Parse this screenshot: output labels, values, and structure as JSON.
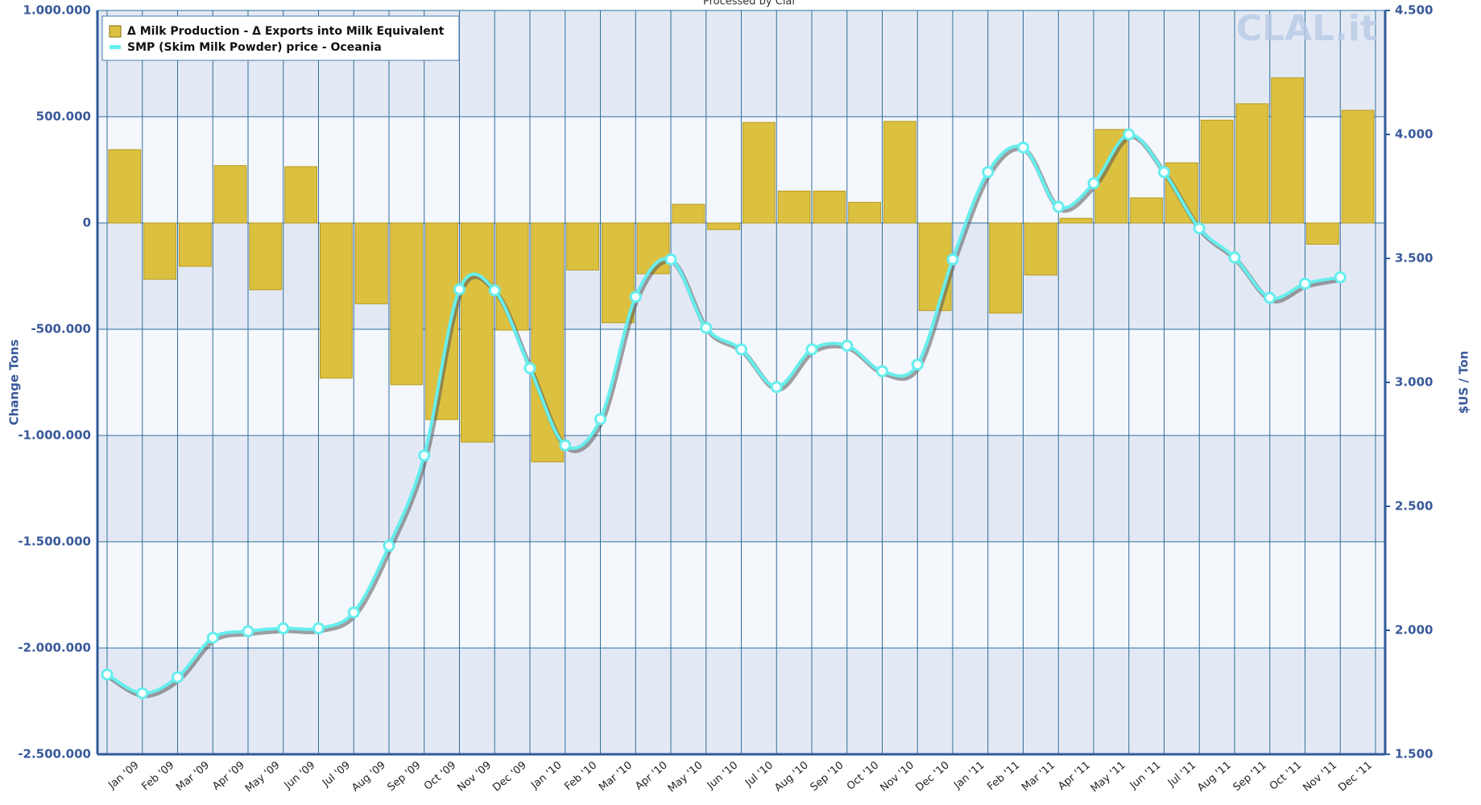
{
  "chart_data": {
    "type": "bar_line",
    "title": "Processed by Clal",
    "watermark": "CLAL.it",
    "y_label": "Change Tons",
    "y2_label": "$US / Ton",
    "categories": [
      "Jan '09",
      "Feb '09",
      "Mar '09",
      "Apr '09",
      "May '09",
      "Jun '09",
      "Jul '09",
      "Aug '09",
      "Sep '09",
      "Oct '09",
      "Nov '09",
      "Dec '09",
      "Jan '10",
      "Feb '10",
      "Mar '10",
      "Apr '10",
      "May '10",
      "Jun '10",
      "Jul '10",
      "Aug '10",
      "Sep '10",
      "Oct '10",
      "Nov '10",
      "Dec '10",
      "Jan '11",
      "Feb '11",
      "Mar '11",
      "Apr '11",
      "May '11",
      "Jun '11",
      "Jul '11",
      "Aug '11",
      "Sep '11",
      "Oct '11",
      "Nov '11",
      "Dec '11"
    ],
    "series": [
      {
        "name": "Δ Milk Production - Δ Exports into Milk Equivalent",
        "kind": "bar",
        "color": "#dcc040",
        "values": [
          345000,
          -265000,
          -204000,
          270000,
          -314000,
          265000,
          -730000,
          -380000,
          -761000,
          -925000,
          -1031000,
          -504000,
          -1124000,
          -221000,
          -469000,
          -239000,
          88000,
          -31000,
          473000,
          150000,
          150000,
          97000,
          478000,
          -412000,
          0,
          -424000,
          -245000,
          22000,
          440000,
          118000,
          283000,
          484000,
          561000,
          683000,
          -100000,
          530000
        ]
      },
      {
        "name": "SMP (Skim Milk Powder) price - Oceania",
        "kind": "line",
        "axis": "y2",
        "color": "#66eeee",
        "values": [
          1822,
          1746,
          1811,
          1970,
          1996,
          2008,
          2008,
          2072,
          2341,
          2705,
          3375,
          3371,
          3057,
          2746,
          2852,
          3345,
          3496,
          3220,
          3133,
          2981,
          3133,
          3148,
          3045,
          3072,
          3496,
          3848,
          3947,
          3708,
          3803,
          4000,
          3848,
          3621,
          3504,
          3341,
          3398,
          3424
        ]
      }
    ],
    "ylim": [
      -2500000,
      1000000
    ],
    "yticks": [
      {
        "value": -2500000,
        "label": "-2.500.000"
      },
      {
        "value": -2000000,
        "label": "-2.000.000"
      },
      {
        "value": -1500000,
        "label": "-1.500.000"
      },
      {
        "value": -1000000,
        "label": "-1.000.000"
      },
      {
        "value": -500000,
        "label": "-500.000"
      },
      0,
      {
        "value": 500000,
        "label": "500.000"
      },
      {
        "value": 1000000,
        "label": "1.000.000"
      }
    ],
    "y2lim": [
      1500,
      4500
    ],
    "y2ticks": [
      {
        "value": 1500,
        "label": "1.500"
      },
      {
        "value": 2000,
        "label": "2.000"
      },
      {
        "value": 2500,
        "label": "2.500"
      },
      {
        "value": 3000,
        "label": "3.000"
      },
      {
        "value": 3500,
        "label": "3.500"
      },
      {
        "value": 4000,
        "label": "4.000"
      },
      {
        "value": 4500,
        "label": "4.500"
      }
    ],
    "grid": true,
    "legend": "top-left"
  }
}
